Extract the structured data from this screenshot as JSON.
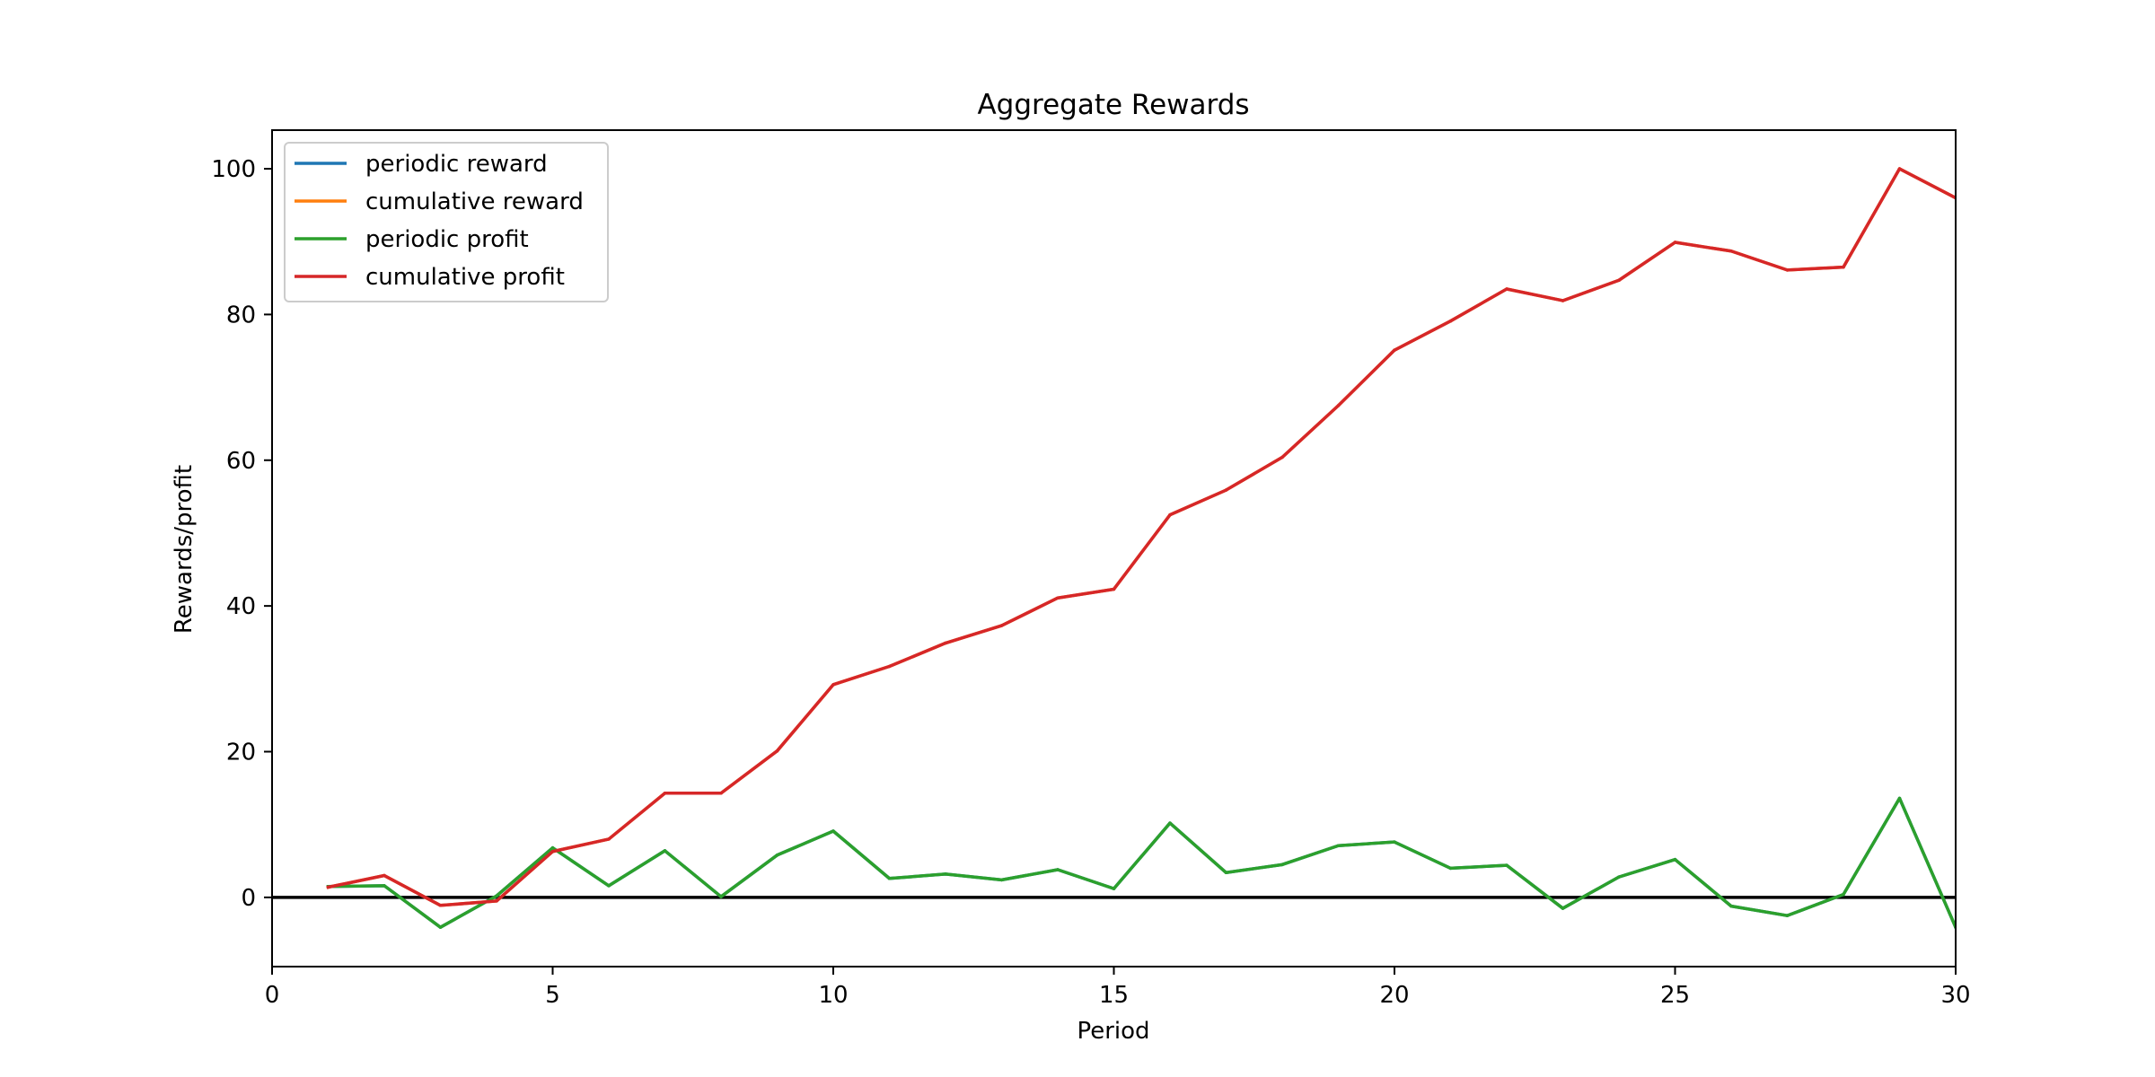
{
  "chart_data": {
    "type": "line",
    "title": "Aggregate Rewards",
    "xlabel": "Period",
    "ylabel": "Rewards/profit",
    "xlim": [
      0,
      30
    ],
    "ylim": [
      -9.5,
      105.3
    ],
    "xticks": [
      0,
      5,
      10,
      15,
      20,
      25,
      30
    ],
    "yticks": [
      0,
      20,
      40,
      60,
      80,
      100
    ],
    "grid": false,
    "legend_position": "upper-left",
    "reference_line": {
      "y": 0,
      "color": "#000000"
    },
    "x": [
      1,
      2,
      3,
      4,
      5,
      6,
      7,
      8,
      9,
      10,
      11,
      12,
      13,
      14,
      15,
      16,
      17,
      18,
      19,
      20,
      21,
      22,
      23,
      24,
      25,
      26,
      27,
      28,
      29,
      30
    ],
    "series": [
      {
        "name": "periodic reward",
        "color": "#1f77b4",
        "values": [
          1.5,
          1.6,
          -4.1,
          0.2,
          6.8,
          1.6,
          6.4,
          0.1,
          5.8,
          9.1,
          2.6,
          3.2,
          2.4,
          3.8,
          1.2,
          10.2,
          3.4,
          4.5,
          7.1,
          7.6,
          4.0,
          4.4,
          -1.5,
          2.8,
          5.2,
          -1.2,
          -2.5,
          0.4,
          13.6,
          -4.1
        ]
      },
      {
        "name": "cumulative reward",
        "color": "#ff7f0e",
        "values": [
          1.4,
          3.0,
          -1.1,
          -0.5,
          6.3,
          8.0,
          14.3,
          14.3,
          20.1,
          29.2,
          31.7,
          34.9,
          37.3,
          41.1,
          42.3,
          52.5,
          55.9,
          60.4,
          67.5,
          75.1,
          79.1,
          83.5,
          81.9,
          84.7,
          89.9,
          88.7,
          86.1,
          86.5,
          100.0,
          96.0
        ]
      },
      {
        "name": "periodic profit",
        "color": "#2ca02c",
        "values": [
          1.5,
          1.6,
          -4.1,
          0.2,
          6.8,
          1.6,
          6.4,
          0.1,
          5.8,
          9.1,
          2.6,
          3.2,
          2.4,
          3.8,
          1.2,
          10.2,
          3.4,
          4.5,
          7.1,
          7.6,
          4.0,
          4.4,
          -1.5,
          2.8,
          5.2,
          -1.2,
          -2.5,
          0.4,
          13.6,
          -4.1
        ]
      },
      {
        "name": "cumulative profit",
        "color": "#d62728",
        "values": [
          1.4,
          3.0,
          -1.1,
          -0.5,
          6.3,
          8.0,
          14.3,
          14.3,
          20.1,
          29.2,
          31.7,
          34.9,
          37.3,
          41.1,
          42.3,
          52.5,
          55.9,
          60.4,
          67.5,
          75.1,
          79.1,
          83.5,
          81.9,
          84.7,
          89.9,
          88.7,
          86.1,
          86.5,
          100.0,
          96.0
        ]
      }
    ]
  }
}
